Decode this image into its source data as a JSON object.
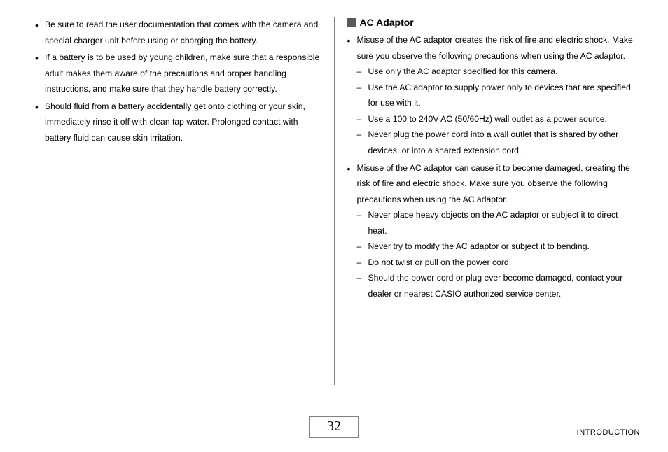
{
  "left_column": {
    "bullets": [
      "Be sure to read the user documentation that comes with the camera and special charger unit before using or charging the battery.",
      "If a battery is to be used by young children, make sure that a responsible adult makes them aware of the precautions and proper handling instructions, and make sure that they handle battery correctly.",
      "Should fluid from a battery accidentally get onto clothing or your skin, immediately rinse it off with clean tap water. Prolonged contact with battery fluid can cause skin irritation."
    ]
  },
  "right_column": {
    "heading": "AC Adaptor",
    "bullet1": {
      "text": "Misuse of the AC adaptor creates the risk of fire and electric shock. Make sure you observe the following precautions when using the AC adaptor.",
      "subs": [
        "Use only the AC adaptor specified for this camera.",
        "Use the AC adaptor to supply power only to devices that are specified for use with it.",
        "Use a 100 to 240V AC (50/60Hz) wall outlet as a power source.",
        "Never plug the power cord into a wall outlet that is shared by other devices, or into a shared extension cord."
      ]
    },
    "bullet2": {
      "text": "Misuse of the AC adaptor can cause it to become damaged, creating the risk of fire and electric shock. Make sure you observe the following precautions when using the AC adaptor.",
      "subs": [
        "Never place heavy objects on the AC adaptor or subject it to direct heat.",
        "Never try to modify the AC adaptor or subject it to bending.",
        "Do not twist or pull on the power cord.",
        "Should the power cord or plug ever become damaged, contact your dealer or nearest CASIO authorized service center."
      ]
    }
  },
  "footer": {
    "page_number": "32",
    "section_label": "INTRODUCTION"
  }
}
